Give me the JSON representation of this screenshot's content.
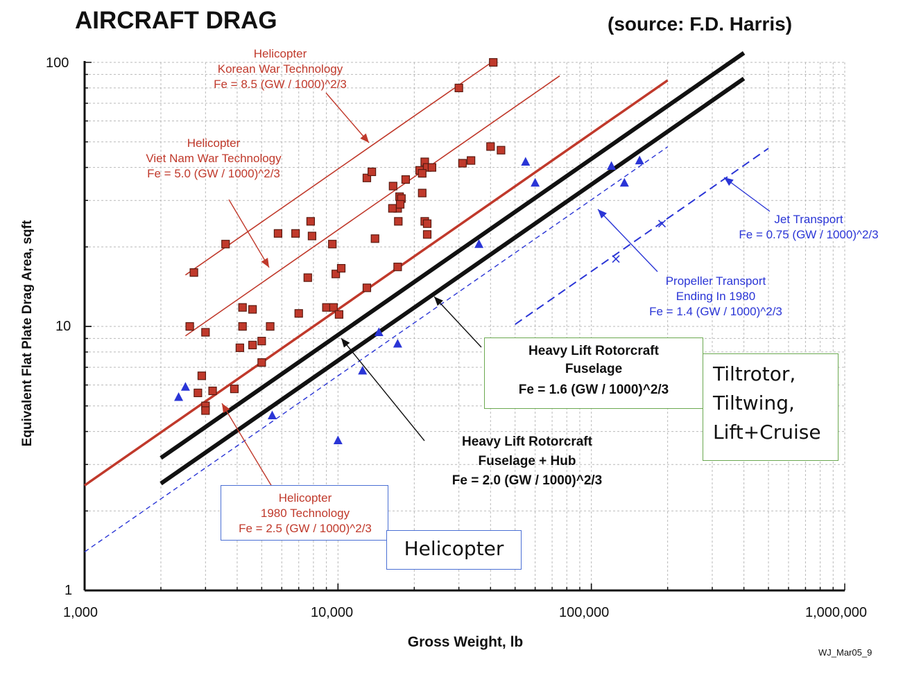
{
  "title": "AIRCRAFT DRAG",
  "source": "(source: F.D. Harris)",
  "footnote": "WJ_Mar05_9",
  "colors": {
    "red": "#c0392b",
    "blue": "#2a35d6",
    "black": "#111111",
    "green_box": "#6aa84f",
    "blue_box": "#4a6fd4"
  },
  "annotations": {
    "korean": [
      "Helicopter",
      "Korean War Technology",
      "Fe = 8.5 (GW / 1000)^2/3"
    ],
    "vietnam": [
      "Helicopter",
      "Viet Nam War Technology",
      "Fe = 5.0 (GW / 1000)^2/3"
    ],
    "heli1980": [
      "Helicopter",
      "1980 Technology",
      "Fe = 2.5 (GW / 1000)^2/3"
    ],
    "jet": [
      "Jet Transport",
      "Fe = 0.75 (GW / 1000)^2/3"
    ],
    "prop": [
      "Propeller Transport",
      "Ending  In  1980",
      "Fe = 1.4 (GW / 1000)^2/3"
    ],
    "hl_fuselage": [
      "Heavy Lift Rotorcraft",
      "Fuselage",
      "Fe = 1.6 (GW / 1000)^2/3"
    ],
    "hl_hub": [
      "Heavy Lift Rotorcraft",
      "Fuselage + Hub",
      "Fe = 2.0 (GW / 1000)^2/3"
    ],
    "tiltrotor_box": [
      "Tiltrotor,",
      "Tiltwing,",
      "Lift+Cruise"
    ],
    "helicopter_box": "Helicopter"
  },
  "chart_data": {
    "type": "scatter",
    "title": "AIRCRAFT DRAG",
    "xlabel": "Gross Weight,  lb",
    "ylabel": "Equivalent Flat Plate Drag Area,  sqft",
    "x_scale": "log",
    "y_scale": "log",
    "xlim": [
      1000,
      1000000
    ],
    "ylim": [
      1,
      100
    ],
    "x_ticks": [
      1000,
      10000,
      100000,
      1000000
    ],
    "x_tick_labels": [
      "1,000",
      "10,000",
      "100,000",
      "1,000,000"
    ],
    "y_ticks": [
      1,
      10,
      100
    ],
    "y_tick_labels": [
      "1",
      "10",
      "100"
    ],
    "grid": true,
    "lines": [
      {
        "name": "Helicopter Korean War Technology",
        "coef": 8.5,
        "x_range": [
          2500,
          41000
        ],
        "color": "#c0392b",
        "weight": "thin"
      },
      {
        "name": "Helicopter Viet Nam War Technology",
        "coef": 5.0,
        "x_range": [
          2500,
          75000
        ],
        "color": "#c0392b",
        "weight": "thin"
      },
      {
        "name": "Helicopter 1980 Technology",
        "coef": 2.5,
        "x_range": [
          1000,
          200000
        ],
        "color": "#c0392b",
        "weight": "thick"
      },
      {
        "name": "Heavy Lift Rotorcraft Fuselage + Hub",
        "coef": 2.0,
        "x_range": [
          2000,
          400000
        ],
        "color": "#111111",
        "weight": "heavy"
      },
      {
        "name": "Heavy Lift Rotorcraft Fuselage",
        "coef": 1.6,
        "x_range": [
          2000,
          400000
        ],
        "color": "#111111",
        "weight": "heavy"
      },
      {
        "name": "Propeller Transport Ending In 1980",
        "coef": 1.4,
        "x_range": [
          1000,
          200000
        ],
        "color": "#2a35d6",
        "weight": "dash-thin"
      },
      {
        "name": "Jet Transport",
        "coef": 0.75,
        "x_range": [
          50000,
          500000
        ],
        "color": "#2a35d6",
        "weight": "dash"
      }
    ],
    "series": [
      {
        "name": "Helicopters",
        "marker": "square",
        "color": "#c0392b",
        "points": [
          [
            41000,
            100
          ],
          [
            30000,
            80
          ],
          [
            40000,
            48
          ],
          [
            44000,
            46.5
          ],
          [
            22000,
            42
          ],
          [
            21000,
            39
          ],
          [
            22500,
            40
          ],
          [
            21500,
            38
          ],
          [
            23500,
            40
          ],
          [
            31000,
            41.5
          ],
          [
            33500,
            42.5
          ],
          [
            13000,
            36.5
          ],
          [
            13600,
            38.5
          ],
          [
            16500,
            34
          ],
          [
            18500,
            36
          ],
          [
            17500,
            31
          ],
          [
            17800,
            30.5
          ],
          [
            17200,
            28
          ],
          [
            16400,
            28
          ],
          [
            17600,
            29
          ],
          [
            21500,
            32
          ],
          [
            22000,
            25
          ],
          [
            22500,
            24.5
          ],
          [
            17300,
            25
          ],
          [
            22500,
            22.3
          ],
          [
            14000,
            21.5
          ],
          [
            2700,
            16
          ],
          [
            3600,
            20.5
          ],
          [
            5800,
            22.5
          ],
          [
            6800,
            22.5
          ],
          [
            7800,
            25
          ],
          [
            7900,
            22
          ],
          [
            9500,
            20.5
          ],
          [
            7600,
            15.3
          ],
          [
            9800,
            15.8
          ],
          [
            10300,
            16.6
          ],
          [
            17200,
            16.8
          ],
          [
            13000,
            14
          ],
          [
            4200,
            11.8
          ],
          [
            4600,
            11.6
          ],
          [
            7000,
            11.2
          ],
          [
            9000,
            11.8
          ],
          [
            9600,
            11.8
          ],
          [
            10100,
            11.1
          ],
          [
            2600,
            10
          ],
          [
            3000,
            9.5
          ],
          [
            4200,
            10
          ],
          [
            5400,
            10
          ],
          [
            4100,
            8.3
          ],
          [
            4600,
            8.5
          ],
          [
            5000,
            8.8
          ],
          [
            5000,
            7.3
          ],
          [
            2900,
            6.5
          ],
          [
            2800,
            5.6
          ],
          [
            3200,
            5.7
          ],
          [
            3900,
            5.8
          ],
          [
            3000,
            5.0
          ],
          [
            3000,
            4.8
          ]
        ]
      },
      {
        "name": "Tiltrotor / Tiltwing / Lift+Cruise",
        "marker": "triangle",
        "color": "#2a35d6",
        "points": [
          [
            2350,
            5.4
          ],
          [
            2500,
            5.9
          ],
          [
            5500,
            4.6
          ],
          [
            10000,
            3.7
          ],
          [
            12500,
            6.8
          ],
          [
            14500,
            9.5
          ],
          [
            17200,
            8.6
          ],
          [
            36000,
            20.5
          ],
          [
            55000,
            42
          ],
          [
            60000,
            35
          ],
          [
            120000,
            40.5
          ],
          [
            135000,
            35
          ],
          [
            155000,
            42.5
          ]
        ]
      },
      {
        "name": "Jet Transport",
        "marker": "x",
        "color": "#2a35d6",
        "points": [
          [
            125000,
            18
          ],
          [
            190000,
            24.5
          ]
        ]
      }
    ]
  }
}
